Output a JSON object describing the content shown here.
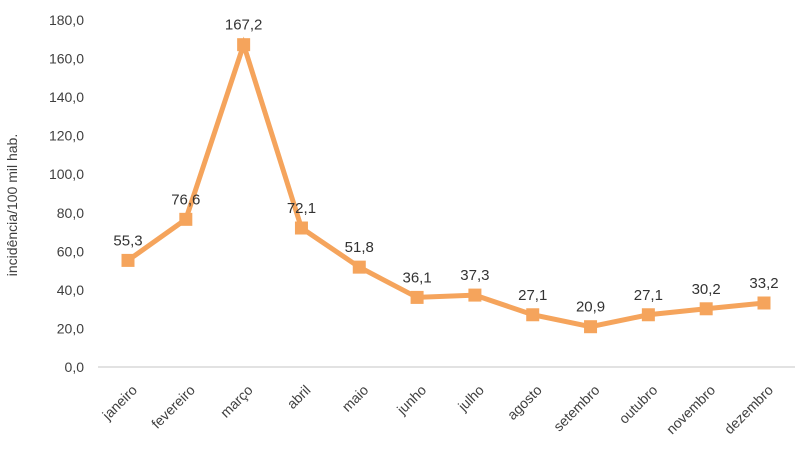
{
  "chart_data": {
    "type": "line",
    "title": "",
    "xlabel": "",
    "ylabel": "incidência/100 mil hab.",
    "categories": [
      "janeiro",
      "fevereiro",
      "março",
      "abril",
      "maio",
      "junho",
      "julho",
      "agosto",
      "setembro",
      "outubro",
      "novembro",
      "dezembro"
    ],
    "values": [
      55.3,
      76.6,
      167.2,
      72.1,
      51.8,
      36.1,
      37.3,
      27.1,
      20.9,
      27.1,
      30.2,
      33.2
    ],
    "value_labels": [
      "55,3",
      "76,6",
      "167,2",
      "72,1",
      "51,8",
      "36,1",
      "37,3",
      "27,1",
      "20,9",
      "27,1",
      "30,2",
      "33,2"
    ],
    "y_tick_labels": [
      "0,0",
      "20,0",
      "40,0",
      "60,0",
      "80,0",
      "100,0",
      "120,0",
      "140,0",
      "160,0",
      "180,0"
    ],
    "ylim": [
      0,
      180
    ],
    "ytick_step": 20,
    "grid": false,
    "legend_position": "none",
    "marker_style": "square",
    "colors": {
      "line": "#F5A45C",
      "marker": "#F5A45C",
      "data_label_text": "#333333",
      "axis_text": "#3f3f3f",
      "axis_line": "#d9d9d9",
      "background": "#ffffff"
    }
  }
}
